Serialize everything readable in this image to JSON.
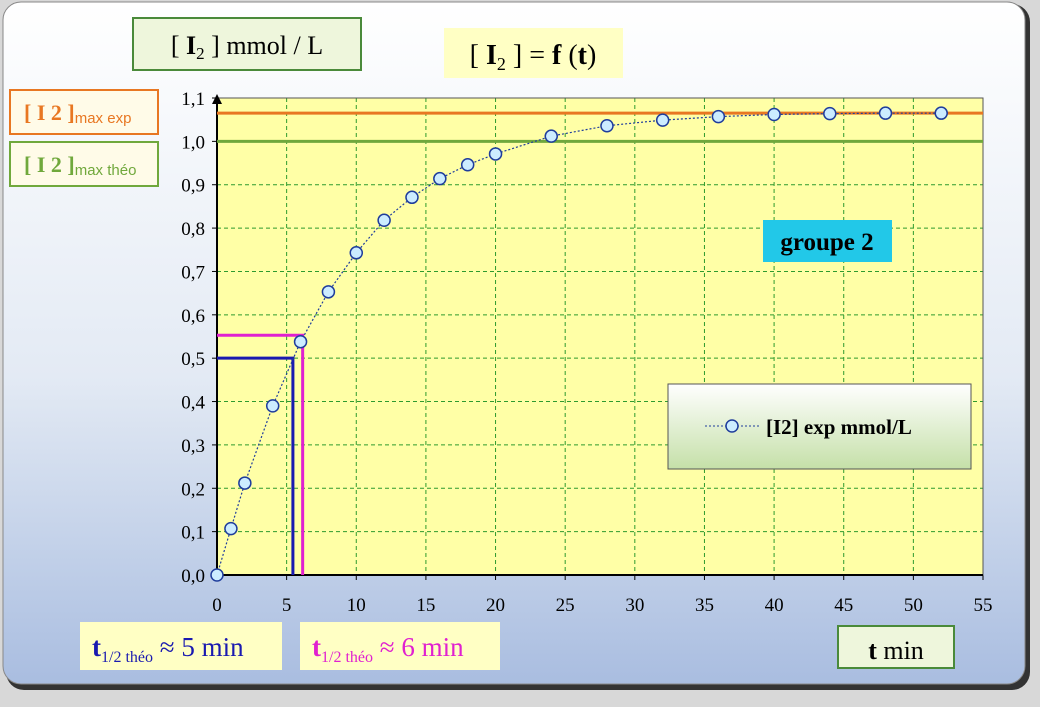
{
  "chart_data": {
    "type": "line",
    "title": [
      "[ ",
      "I",
      "2",
      " ] = ",
      "f",
      " (",
      "t",
      ")"
    ],
    "y_label": [
      "[ ",
      "I",
      "2",
      " ] mmol / L"
    ],
    "x_label": [
      "t",
      " min"
    ],
    "group_label": "groupe 2",
    "x": [
      0,
      1,
      2,
      4,
      6,
      8,
      10,
      12,
      14,
      16,
      18,
      20,
      24,
      28,
      32,
      36,
      40,
      44,
      48,
      52
    ],
    "series": [
      {
        "name": "[I2] exp mmol/L",
        "color": "#1f3d9c",
        "values": [
          0,
          0.107,
          0.212,
          0.39,
          0.538,
          0.653,
          0.743,
          0.818,
          0.871,
          0.914,
          0.946,
          0.971,
          1.012,
          1.036,
          1.049,
          1.057,
          1.062,
          1.064,
          1.065,
          1.065
        ]
      }
    ],
    "xlim": [
      0,
      55
    ],
    "xticks": [
      0,
      5,
      10,
      15,
      20,
      25,
      30,
      35,
      40,
      45,
      50,
      55
    ],
    "ylim": [
      0,
      1.1
    ],
    "yticks": [
      {
        "value": 0,
        "label": "0,0"
      },
      {
        "value": 0.1,
        "label": "0,1"
      },
      {
        "value": 0.2,
        "label": "0,2"
      },
      {
        "value": 0.3,
        "label": "0,3"
      },
      {
        "value": 0.4,
        "label": "0,4"
      },
      {
        "value": 0.5,
        "label": "0,5"
      },
      {
        "value": 0.6,
        "label": "0,6"
      },
      {
        "value": 0.7,
        "label": "0,7"
      },
      {
        "value": 0.8,
        "label": "0,8"
      },
      {
        "value": 0.9,
        "label": "0,9"
      },
      {
        "value": 1.0,
        "label": "1,0"
      },
      {
        "value": 1.1,
        "label": "1,1"
      }
    ],
    "grid": true,
    "reference_lines": [
      {
        "label_main": "[ I 2 ]",
        "label_sub": "max exp",
        "value": 1.065,
        "color": "#e87722"
      },
      {
        "label_main": "[ I 2 ]",
        "label_sub": "max théo",
        "value": 1.0,
        "color": "#70a83c"
      }
    ],
    "half_life_markers": [
      {
        "label_t": "t",
        "label_sub": "1/2 théo",
        "label_rest": " ≈ 5 min",
        "t": 5.45,
        "value": 0.5,
        "color": "#1a1ab0"
      },
      {
        "label_t": "t",
        "label_sub": "1/2 théo",
        "label_rest": " ≈ 6 min",
        "t": 6.15,
        "value": 0.553,
        "color": "#e020d0"
      }
    ]
  }
}
